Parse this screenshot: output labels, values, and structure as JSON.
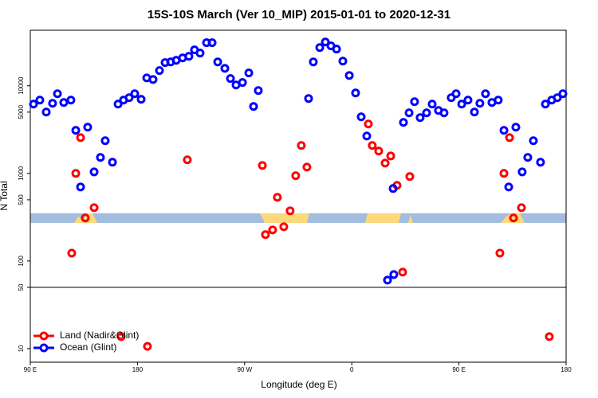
{
  "chart_data": {
    "type": "scatter",
    "title": "15S-10S March (Ver 10_MIP)   2015-01-01 to 2020-12-31",
    "x_label": "Longitude (deg E)",
    "y_label": "N Total",
    "log_y": true,
    "xlim": [
      90,
      540
    ],
    "xticks": [
      {
        "value": 90,
        "label": "90 E"
      },
      180,
      {
        "value": 270,
        "label": "90 W"
      },
      {
        "value": 360,
        "label": "0"
      },
      {
        "value": 450,
        "label": "90 E"
      },
      {
        "value": 540,
        "label": "180"
      }
    ],
    "ylim": [
      7,
      43000
    ],
    "yticks": [
      10,
      50,
      100,
      500,
      1000,
      5000,
      10000
    ],
    "reference_line": 50,
    "legend": "bottom-left",
    "series": [
      {
        "name": "Land (Nadir&Glint)",
        "color": "#ff0000",
        "x": [
          124.8,
          128.2,
          132.2,
          136.2,
          143.6,
          166.3,
          188.4,
          221.9,
          284.9,
          287.5,
          293.5,
          297.5,
          302.9,
          308.2,
          312.9,
          317.6,
          322.3,
          373.9,
          377.2,
          382.6,
          388,
          392.7,
          398,
          402.7,
          408.7,
          484.4,
          487.8,
          492.5,
          495.8,
          502.5,
          525.9
        ],
        "values": [
          123,
          1000,
          2560,
          310,
          406,
          13.7,
          10.6,
          1430,
          1230,
          200,
          226,
          533,
          246,
          374,
          940,
          2080,
          1180,
          3660,
          2080,
          1800,
          1310,
          1580,
          730,
          74.6,
          920,
          123,
          1000,
          2560,
          310,
          406,
          13.7
        ]
      },
      {
        "name": "Ocean (Glint)",
        "color": "#0000ff",
        "x": [
          92.7,
          98,
          103.4,
          108.7,
          112.8,
          118.1,
          124.1,
          128.2,
          132.2,
          138.2,
          143.6,
          148.9,
          152.9,
          159,
          163.7,
          168.3,
          173,
          177.7,
          183.1,
          187.8,
          193.1,
          198.5,
          203.2,
          207.9,
          212.5,
          217.9,
          223.2,
          227.9,
          232.6,
          238,
          242.7,
          247.4,
          253.4,
          258.1,
          262.8,
          268.2,
          273.5,
          277.5,
          281.5,
          323.7,
          327.7,
          333.1,
          337.8,
          342.5,
          347.2,
          352.5,
          357.9,
          363.2,
          367.9,
          372.6,
          390,
          394.7,
          395.3,
          403.4,
          408.1,
          412.7,
          417.4,
          422.8,
          427.5,
          432.8,
          437.5,
          443.5,
          447.6,
          452.3,
          457.6,
          463,
          467.6,
          472.3,
          477.7,
          483,
          487.8,
          491.8,
          497.8,
          503.1,
          507.8,
          512.5,
          518.5,
          522.6,
          527.9,
          532.6,
          537.3
        ],
        "values": [
          6180,
          6860,
          5010,
          6310,
          8110,
          6440,
          6860,
          3100,
          700,
          3370,
          1040,
          1520,
          2360,
          1340,
          6180,
          6860,
          7310,
          8110,
          7000,
          12300,
          11800,
          14900,
          18400,
          18700,
          19500,
          20800,
          21700,
          25700,
          23600,
          31000,
          31000,
          18700,
          15800,
          12100,
          10200,
          10900,
          14000,
          5800,
          8810,
          7160,
          18700,
          27300,
          31600,
          28500,
          26200,
          19100,
          13100,
          8280,
          4420,
          2670,
          60.5,
          672,
          70,
          3820,
          4910,
          6580,
          4330,
          4910,
          6180,
          5230,
          4910,
          7310,
          8110,
          6180,
          6860,
          5010,
          6310,
          8110,
          6440,
          6860,
          3100,
          700,
          3370,
          1040,
          1520,
          2360,
          1340,
          6180,
          6860,
          7310,
          8110
        ]
      }
    ]
  }
}
